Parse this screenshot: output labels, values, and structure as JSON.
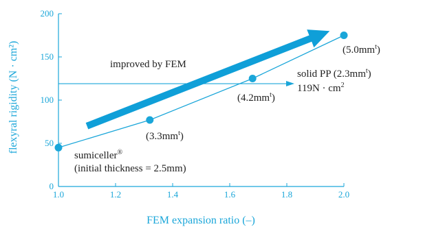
{
  "chart_data": {
    "type": "line",
    "xlabel": "FEM expansion ratio (–)",
    "ylabel": "flexyral rigidity (N · cm²)",
    "xlim": [
      1.0,
      2.0
    ],
    "ylim": [
      0,
      200
    ],
    "x_ticks": [
      "1.0",
      "1.2",
      "1.4",
      "1.6",
      "1.8",
      "2.0"
    ],
    "y_ticks": [
      "0",
      "50",
      "100",
      "150",
      "200"
    ],
    "grid": false,
    "series": [
      {
        "x": [
          1.0,
          1.32,
          1.68,
          2.0
        ],
        "y": [
          45,
          77,
          125,
          175
        ]
      }
    ],
    "reference_line": {
      "y": 119,
      "label_line1": "solid PP (2.3mm",
      "label_line1_sup": "t",
      "label_line1_end": ")",
      "label_line2": "119N · cm",
      "label_line2_sup": "2"
    },
    "arrow": {
      "label": "improved by FEM",
      "from": [
        1.1,
        70
      ],
      "to": [
        1.95,
        180
      ]
    },
    "point_labels": [
      {
        "text": "(3.3mm",
        "sup": "t",
        "end": ")"
      },
      {
        "text": "(4.2mm",
        "sup": "t",
        "end": ")"
      },
      {
        "text": "(5.0mm",
        "sup": "t",
        "end": ")"
      }
    ],
    "start_note": {
      "line1": "sumiceller",
      "line1_sup": "®",
      "line2": "(initial thickness = 2.5mm)"
    },
    "colors": {
      "axis": "#1aa6d9",
      "series": "#1aa6d9",
      "arrow": "#0f9fd8",
      "text": "#222222"
    }
  }
}
